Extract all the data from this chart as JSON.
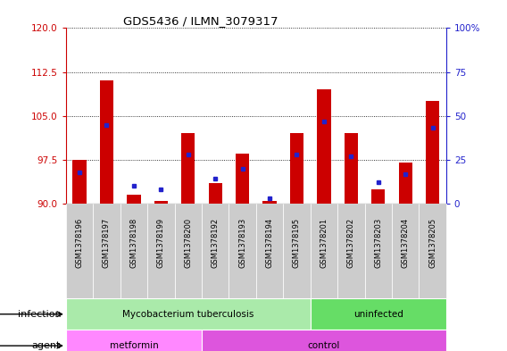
{
  "title": "GDS5436 / ILMN_3079317",
  "samples": [
    "GSM1378196",
    "GSM1378197",
    "GSM1378198",
    "GSM1378199",
    "GSM1378200",
    "GSM1378192",
    "GSM1378193",
    "GSM1378194",
    "GSM1378195",
    "GSM1378201",
    "GSM1378202",
    "GSM1378203",
    "GSM1378204",
    "GSM1378205"
  ],
  "red_values": [
    97.5,
    111.0,
    91.5,
    90.5,
    102.0,
    93.5,
    98.5,
    90.5,
    102.0,
    109.5,
    102.0,
    92.5,
    97.0,
    107.5
  ],
  "blue_values": [
    18,
    45,
    10,
    8,
    28,
    14,
    20,
    3,
    28,
    47,
    27,
    12,
    17,
    43
  ],
  "ylim_left": [
    90,
    120
  ],
  "ylim_right": [
    0,
    100
  ],
  "yticks_left": [
    90,
    97.5,
    105,
    112.5,
    120
  ],
  "yticks_right": [
    0,
    25,
    50,
    75,
    100
  ],
  "bar_width": 0.5,
  "red_color": "#CC0000",
  "blue_color": "#2222CC",
  "bg_color": "#FFFFFF",
  "infection_labels": [
    {
      "text": "Mycobacterium tuberculosis",
      "start": 0,
      "end": 9,
      "color": "#AAEAAA"
    },
    {
      "text": "uninfected",
      "start": 9,
      "end": 14,
      "color": "#66DD66"
    }
  ],
  "agent_labels": [
    {
      "text": "metformin",
      "start": 0,
      "end": 5,
      "color": "#FF88FF"
    },
    {
      "text": "control",
      "start": 5,
      "end": 14,
      "color": "#DD55DD"
    }
  ],
  "infection_row_label": "infection",
  "agent_row_label": "agent"
}
